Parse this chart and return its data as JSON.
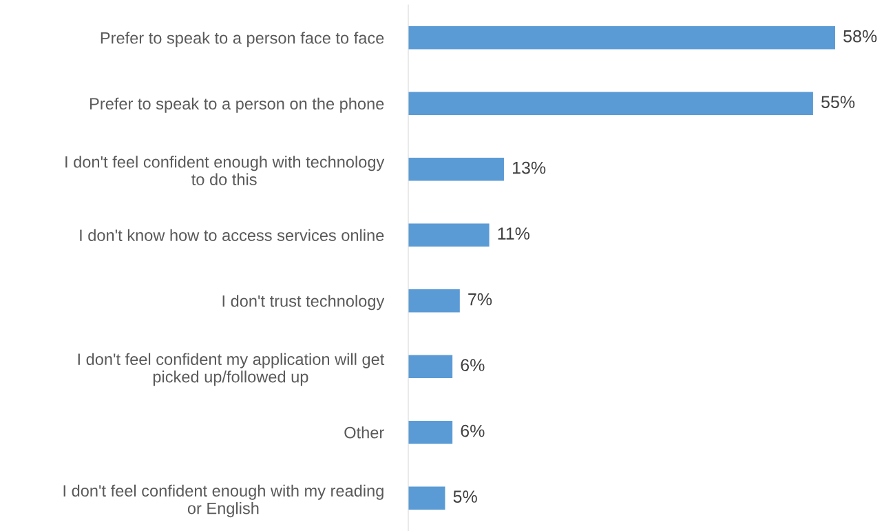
{
  "chart_data": {
    "type": "bar",
    "orientation": "horizontal",
    "categories": [
      "Prefer to speak to a person face to face",
      "Prefer to speak to a person on the phone",
      "I don't feel confident enough with technology\nto do this",
      "I don't know how to access services online",
      "I don't trust technology",
      "I don't feel confident my application will get\npicked up/followed up",
      "Other",
      "I don't feel confident enough with my reading\nor English"
    ],
    "values": [
      58,
      55,
      13,
      11,
      7,
      6,
      6,
      5
    ],
    "value_labels": [
      "58%",
      "55%",
      "13%",
      "11%",
      "7%",
      "6%",
      "6%",
      "5%"
    ],
    "color": "#5b9bd5"
  }
}
